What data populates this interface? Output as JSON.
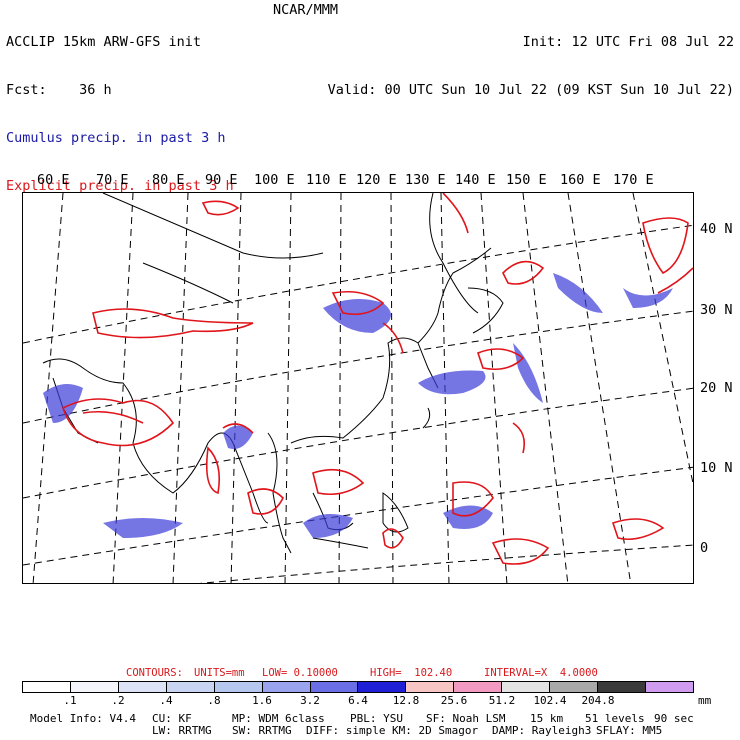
{
  "header": {
    "left_line1": "ACCLIP 15km ARW-GFS init",
    "left_line2": "Fcst:    36 h",
    "center": "NCAR/MMM",
    "right_line1": "Init: 12 UTC Fri 08 Jul 22",
    "right_line2": "Valid: 00 UTC Sun 10 Jul 22 (09 KST Sun 10 Jul 22)"
  },
  "legend": {
    "cumulus": "Cumulus precip. in past 3 h",
    "explicit": "Explicit precip. in past 3 h"
  },
  "map": {
    "lon_labels": [
      "60 E",
      "70 E",
      "80 E",
      "90 E",
      "100 E",
      "110 E",
      "120 E",
      "130 E",
      "140 E",
      "150 E",
      "160 E",
      "170 E"
    ],
    "lat_labels": [
      "40 N",
      "30 N",
      "20 N",
      "10 N",
      "0"
    ],
    "colors": {
      "cumulus": "#3b3bd9",
      "explicit": "#e0141a",
      "coast": "#000000"
    }
  },
  "contours": {
    "label": "CONTOURS:",
    "units": "UNITS=mm",
    "low": "LOW= 0.10000",
    "high": "HIGH=  102.40",
    "interval": "INTERVAL=X  4.0000"
  },
  "colorbar": {
    "colors": [
      "#ffffff",
      "#f4f4fb",
      "#dde3f6",
      "#c8d4f2",
      "#b5c6ef",
      "#9aa4ee",
      "#6b6fe6",
      "#1f1fd6",
      "#f7c6c4",
      "#f39ac2",
      "#e3e3e3",
      "#a9a9a9",
      "#3a3a3a",
      "#cf9cf0"
    ],
    "ticks": [
      ".1",
      ".2",
      ".4",
      ".8",
      "1.6",
      "3.2",
      "6.4",
      "12.8",
      "25.6",
      "51.2",
      "102.4",
      "204.8"
    ],
    "units": "mm"
  },
  "footer": {
    "line1": [
      "Model Info: V4.4",
      "CU: KF",
      "MP: WDM 6class",
      "PBL: YSU",
      "SF: Noah LSM",
      "15 km",
      "51 levels",
      "90 sec"
    ],
    "line2": [
      "LW: RRTMG",
      "SW: RRTMG",
      "DIFF: simple",
      "KM: 2D Smagor",
      "DAMP: Rayleigh3",
      "SFLAY: MM5"
    ]
  }
}
